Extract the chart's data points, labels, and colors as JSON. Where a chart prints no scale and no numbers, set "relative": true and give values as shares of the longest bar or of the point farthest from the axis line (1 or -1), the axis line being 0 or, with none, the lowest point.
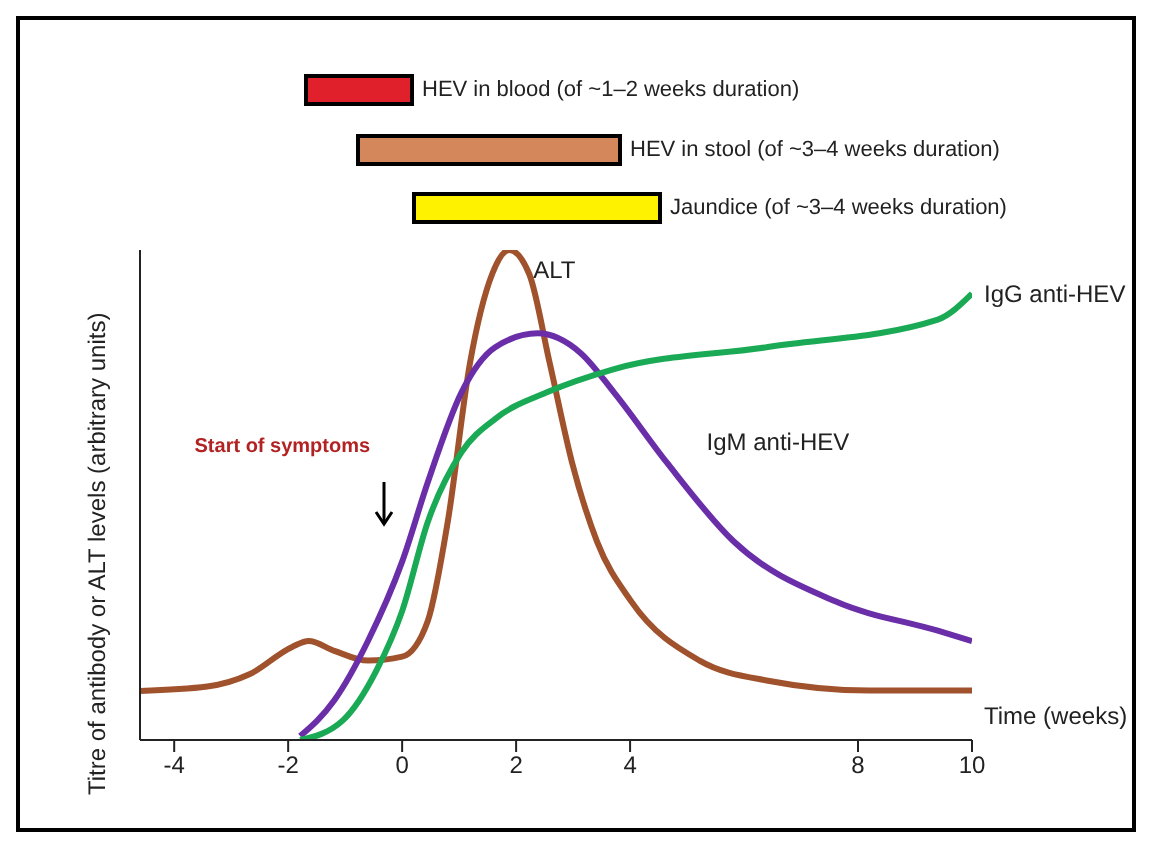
{
  "chart_data": {
    "type": "line",
    "relative": true,
    "xlabel": "Time (weeks)",
    "ylabel": "Titre of antibody or ALT levels (arbitrary units)",
    "xlim": [
      -4.6,
      10
    ],
    "xticks": [
      -4,
      -2,
      0,
      2,
      4,
      8,
      10
    ],
    "annotations": [
      "HEV in blood (of ~1–2 weeks duration)",
      "HEV in stool (of ~3–4 weeks duration)",
      "Jaundice (of ~3–4 weeks duration)",
      "Start of symptoms"
    ],
    "series": [
      {
        "name": "ALT",
        "color": "#a0522d",
        "x": [
          -4.6,
          -3.42,
          -2.68,
          -1.93,
          -1.64,
          -1.19,
          -0.6,
          0,
          0.45,
          0.8,
          1.19,
          1.58,
          1.88,
          2.23,
          2.59,
          2.98,
          3.42,
          4.02,
          5.22,
          6.42,
          8.2,
          10
        ],
        "values": [
          0.1,
          0.109,
          0.134,
          0.19,
          0.202,
          0.182,
          0.162,
          0.17,
          0.243,
          0.445,
          0.769,
          0.951,
          1,
          0.951,
          0.769,
          0.567,
          0.405,
          0.283,
          0.162,
          0.121,
          0.101,
          0.101
        ]
      },
      {
        "name": "IgM anti-HEV",
        "color": "#6a2ea8",
        "x": [
          -1.79,
          -1.19,
          -0.6,
          0,
          0.45,
          1.04,
          1.64,
          2.38,
          3.13,
          3.72,
          4.64,
          5.82,
          7.6,
          9.4,
          10
        ],
        "values": [
          0.008,
          0.081,
          0.202,
          0.364,
          0.526,
          0.709,
          0.802,
          0.83,
          0.79,
          0.709,
          0.567,
          0.405,
          0.283,
          0.223,
          0.202
        ]
      },
      {
        "name": "IgG anti-HEV",
        "color": "#1aaa55",
        "x": [
          -1.79,
          -1.04,
          -0.45,
          0,
          0.45,
          1.04,
          1.64,
          2.53,
          3.72,
          6.42,
          9.4,
          10
        ],
        "values": [
          0,
          0.04,
          0.142,
          0.263,
          0.445,
          0.587,
          0.656,
          0.709,
          0.757,
          0.802,
          0.858,
          0.911
        ]
      }
    ]
  }
}
